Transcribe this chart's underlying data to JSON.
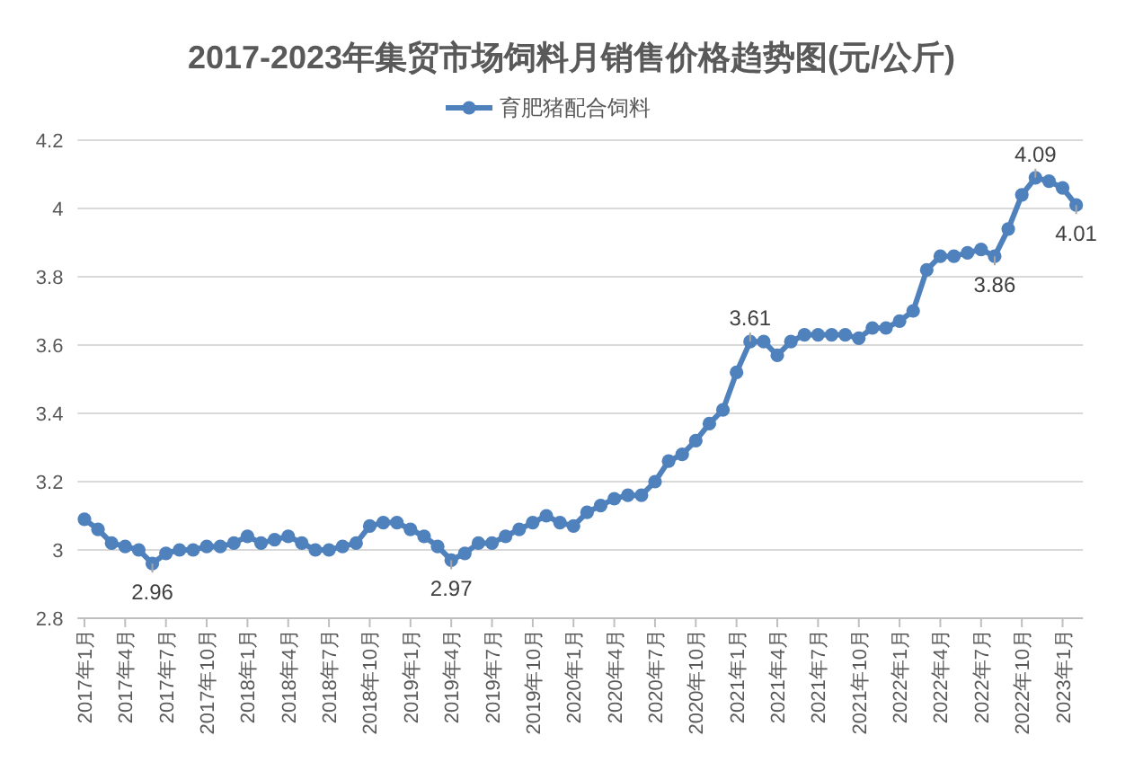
{
  "chart_data": {
    "type": "line",
    "title": "2017-2023年集贸市场饲料月销售价格趋势图(元/公斤)",
    "categories": [
      "2017年1月",
      null,
      null,
      "2017年4月",
      null,
      null,
      "2017年7月",
      null,
      null,
      "2017年10月",
      null,
      null,
      "2018年1月",
      null,
      null,
      "2018年4月",
      null,
      null,
      "2018年7月",
      null,
      null,
      "2018年10月",
      null,
      null,
      "2019年1月",
      null,
      null,
      "2019年4月",
      null,
      null,
      "2019年7月",
      null,
      null,
      "2019年10月",
      null,
      null,
      "2020年1月",
      null,
      null,
      "2020年4月",
      null,
      null,
      "2020年7月",
      null,
      null,
      "2020年10月",
      null,
      null,
      "2021年1月",
      null,
      null,
      "2021年4月",
      null,
      null,
      "2021年7月",
      null,
      null,
      "2021年10月",
      null,
      null,
      "2022年1月",
      null,
      null,
      "2022年4月",
      null,
      null,
      "2022年7月",
      null,
      null,
      "2022年10月",
      null,
      null,
      "2023年1月",
      null
    ],
    "series": [
      {
        "name": "育肥猪配合饲料",
        "color": "#4f81bd",
        "values": [
          3.09,
          3.06,
          3.02,
          3.01,
          3.0,
          2.96,
          2.99,
          3.0,
          3.0,
          3.01,
          3.01,
          3.02,
          3.04,
          3.02,
          3.03,
          3.04,
          3.02,
          3.0,
          3.0,
          3.01,
          3.02,
          3.07,
          3.08,
          3.08,
          3.06,
          3.04,
          3.01,
          2.97,
          2.99,
          3.02,
          3.02,
          3.04,
          3.06,
          3.08,
          3.1,
          3.08,
          3.07,
          3.11,
          3.13,
          3.15,
          3.16,
          3.16,
          3.2,
          3.26,
          3.28,
          3.32,
          3.37,
          3.41,
          3.52,
          3.61,
          3.61,
          3.57,
          3.61,
          3.63,
          3.63,
          3.63,
          3.63,
          3.62,
          3.65,
          3.65,
          3.67,
          3.7,
          3.82,
          3.86,
          3.86,
          3.87,
          3.88,
          3.86,
          3.94,
          4.04,
          4.09,
          4.08,
          4.06,
          4.01
        ],
        "value_labels": [
          null,
          null,
          null,
          null,
          null,
          "2.96",
          null,
          null,
          null,
          null,
          null,
          null,
          null,
          null,
          null,
          null,
          null,
          null,
          null,
          null,
          null,
          null,
          null,
          null,
          null,
          null,
          null,
          "2.97",
          null,
          null,
          null,
          null,
          null,
          null,
          null,
          null,
          null,
          null,
          null,
          null,
          null,
          null,
          null,
          null,
          null,
          null,
          null,
          null,
          null,
          "3.61",
          null,
          null,
          null,
          null,
          null,
          null,
          null,
          null,
          null,
          null,
          null,
          null,
          null,
          null,
          null,
          null,
          null,
          "3.86",
          null,
          null,
          "4.09",
          null,
          null,
          "4.01"
        ]
      }
    ],
    "ylim": [
      2.8,
      4.2
    ],
    "yticks": [
      2.8,
      3,
      3.2,
      3.4,
      3.6,
      3.8,
      4,
      4.2
    ],
    "grid": "y",
    "legend": "top",
    "marker": "circle",
    "line_style": "solid"
  }
}
